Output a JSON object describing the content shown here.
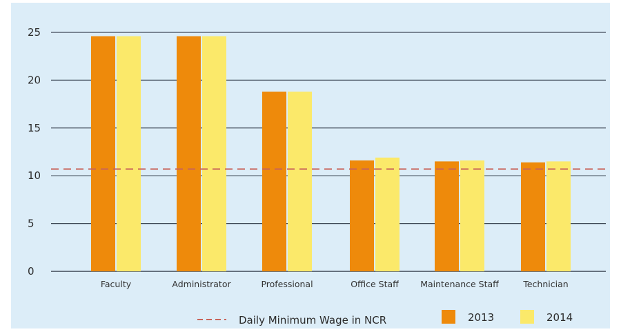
{
  "colors": {
    "panel_background": "#dcedf8",
    "gridline": "#3f4a57",
    "series_2013": "#ee8a0b",
    "series_2014": "#fbe96a",
    "minimum_wage_line": "#c8645a"
  },
  "chart_data": {
    "type": "bar",
    "title": "",
    "xlabel": "",
    "ylabel": "",
    "ylim": [
      0,
      25
    ],
    "yticks": [
      0,
      5,
      10,
      15,
      20,
      25
    ],
    "grid": true,
    "legend_position": "bottom-right",
    "categories": [
      "Faculty",
      "Administrator",
      "Professional",
      "Office Staff",
      "Maintenance Staff",
      "Technician"
    ],
    "series": [
      {
        "name": "2013",
        "color": "#ee8a0b",
        "values": [
          24.6,
          24.6,
          18.8,
          11.6,
          11.5,
          11.4
        ]
      },
      {
        "name": "2014",
        "color": "#fbe96a",
        "values": [
          24.6,
          24.6,
          18.8,
          11.9,
          11.6,
          11.5
        ]
      }
    ],
    "reference_line": {
      "name": "Daily Minimum Wage in NCR",
      "value": 10.7,
      "style": "dashed",
      "color": "#c8645a"
    }
  }
}
